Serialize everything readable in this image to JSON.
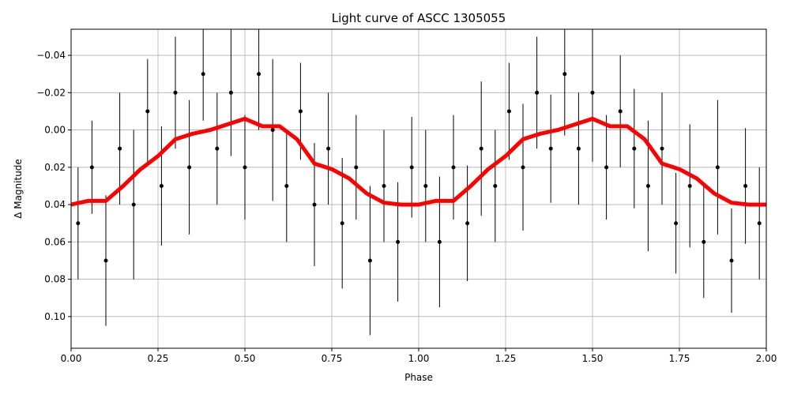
{
  "chart_data": {
    "type": "scatter",
    "title": "Light curve of ASCC 1305055",
    "x_label": "Phase",
    "y_label": "Δ Magnitude",
    "xlim": [
      0,
      2
    ],
    "ylim": [
      0.117,
      -0.054
    ],
    "grid": true,
    "xticks": [
      {
        "value": 0,
        "label": "0.00"
      },
      {
        "value": 0.25,
        "label": "0.25"
      },
      {
        "value": 0.5,
        "label": "0.50"
      },
      {
        "value": 0.75,
        "label": "0.75"
      },
      {
        "value": 1,
        "label": "1.00"
      },
      {
        "value": 1.25,
        "label": "1.25"
      },
      {
        "value": 1.5,
        "label": "1.50"
      },
      {
        "value": 1.75,
        "label": "1.75"
      },
      {
        "value": 2,
        "label": "2.00"
      }
    ],
    "yticks": [
      {
        "value": -0.04,
        "label": "−0.04"
      },
      {
        "value": -0.02,
        "label": "−0.02"
      },
      {
        "value": 0,
        "label": "0.00"
      },
      {
        "value": 0.02,
        "label": "0.02"
      },
      {
        "value": 0.04,
        "label": "0.04"
      },
      {
        "value": 0.06,
        "label": "0.06"
      },
      {
        "value": 0.08,
        "label": "0.08"
      },
      {
        "value": 0.1,
        "label": "0.10"
      }
    ],
    "series": [
      {
        "type": "errorbar",
        "color": "#000000",
        "x": [
          0.02,
          0.06,
          0.1,
          0.14,
          0.18,
          0.22,
          0.26,
          0.3,
          0.34,
          0.38,
          0.42,
          0.46,
          0.5,
          0.54,
          0.58,
          0.62,
          0.66,
          0.7,
          0.74,
          0.78,
          0.82,
          0.86,
          0.9,
          0.94,
          0.98,
          1.02,
          1.06,
          1.1,
          1.14,
          1.18,
          1.22,
          1.26,
          1.3,
          1.34,
          1.38,
          1.42,
          1.46,
          1.5,
          1.54,
          1.58,
          1.62,
          1.66,
          1.7,
          1.74,
          1.78,
          1.82,
          1.86,
          1.9,
          1.94,
          1.98
        ],
        "values": [
          0.05,
          0.02,
          0.07,
          0.01,
          0.04,
          -0.01,
          0.03,
          -0.02,
          0.02,
          -0.03,
          0.01,
          -0.02,
          0.02,
          -0.03,
          0.0,
          0.03,
          -0.01,
          0.04,
          0.01,
          0.05,
          0.02,
          0.07,
          0.03,
          0.06,
          0.02,
          0.03,
          0.06,
          0.02,
          0.05,
          0.01,
          0.03,
          -0.01,
          0.02,
          -0.02,
          0.01,
          -0.03,
          0.01,
          -0.02,
          0.02,
          -0.01,
          0.01,
          0.03,
          0.01,
          0.05,
          0.03,
          0.06,
          0.02,
          0.07,
          0.03,
          0.05
        ],
        "errors": [
          0.03,
          0.025,
          0.035,
          0.03,
          0.04,
          0.028,
          0.032,
          0.03,
          0.036,
          0.025,
          0.03,
          0.034,
          0.028,
          0.03,
          0.038,
          0.03,
          0.026,
          0.033,
          0.03,
          0.035,
          0.028,
          0.04,
          0.03,
          0.032,
          0.027,
          0.03,
          0.035,
          0.028,
          0.031,
          0.036,
          0.03,
          0.026,
          0.034,
          0.03,
          0.029,
          0.033,
          0.03,
          0.037,
          0.028,
          0.03,
          0.032,
          0.035,
          0.03,
          0.027,
          0.033,
          0.03,
          0.036,
          0.028,
          0.031,
          0.03
        ]
      },
      {
        "type": "line",
        "color": "#ff0000",
        "x": [
          0,
          0.05,
          0.1,
          0.15,
          0.2,
          0.25,
          0.3,
          0.35,
          0.4,
          0.45,
          0.5,
          0.55,
          0.6,
          0.65,
          0.7,
          0.75,
          0.8,
          0.85,
          0.9,
          0.95,
          1.0,
          1.05,
          1.1,
          1.15,
          1.2,
          1.25,
          1.3,
          1.35,
          1.4,
          1.45,
          1.5,
          1.55,
          1.6,
          1.65,
          1.7,
          1.75,
          1.8,
          1.85,
          1.9,
          1.95,
          2.0
        ],
        "values": [
          0.04,
          0.038,
          0.038,
          0.03,
          0.021,
          0.014,
          0.005,
          0.002,
          0.0,
          -0.003,
          -0.006,
          -0.002,
          -0.002,
          0.005,
          0.018,
          0.021,
          0.026,
          0.034,
          0.039,
          0.04,
          0.04,
          0.038,
          0.038,
          0.03,
          0.021,
          0.014,
          0.005,
          0.002,
          0.0,
          -0.003,
          -0.006,
          -0.002,
          -0.002,
          0.005,
          0.018,
          0.021,
          0.026,
          0.034,
          0.039,
          0.04,
          0.04
        ]
      }
    ]
  }
}
